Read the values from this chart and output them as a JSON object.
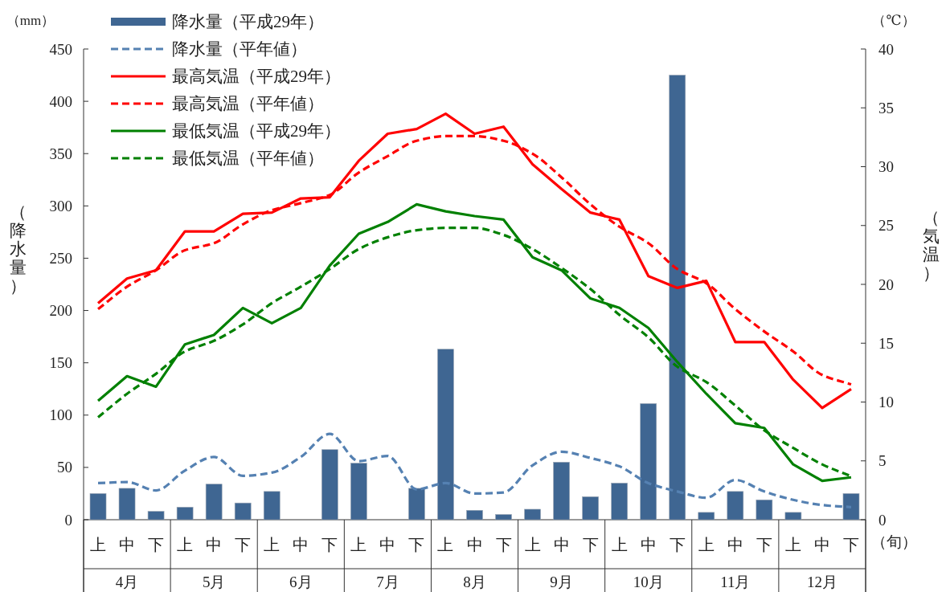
{
  "chart_data": {
    "type": "bar",
    "categories": [
      "上",
      "中",
      "下",
      "上",
      "中",
      "下",
      "上",
      "中",
      "下",
      "上",
      "中",
      "下",
      "上",
      "中",
      "下",
      "上",
      "中",
      "下",
      "上",
      "中",
      "下",
      "上",
      "中",
      "下",
      "上",
      "中",
      "下"
    ],
    "series": [
      {
        "name": "降水量（平成29年）",
        "color": "#3f6692",
        "values": [
          25,
          30,
          8,
          12,
          34,
          16,
          27,
          0,
          67,
          54,
          0,
          30,
          163,
          9,
          5,
          10,
          55,
          22,
          35,
          111,
          425,
          7,
          27,
          19,
          7,
          0,
          25
        ]
      },
      {
        "name": "降水量（平年値）",
        "type": "line",
        "line_style": "dashed",
        "color": "#5581b2",
        "values": [
          35,
          36,
          28,
          47,
          60,
          42,
          45,
          60,
          82,
          56,
          61,
          29,
          35,
          25,
          26,
          52,
          65,
          59,
          51,
          35,
          27,
          21,
          38,
          27,
          19,
          14,
          12
        ]
      },
      {
        "name": "最高気温（平成29年）",
        "type": "line",
        "axis": "y2",
        "line_style": "solid",
        "color": "#ff0000",
        "values": [
          18.4,
          20.5,
          21.2,
          24.5,
          24.5,
          26.0,
          26.1,
          27.3,
          27.4,
          30.5,
          32.8,
          33.2,
          34.5,
          32.8,
          33.4,
          30.2,
          28.1,
          26.1,
          25.5,
          20.7,
          19.7,
          20.3,
          15.1,
          15.1,
          11.9,
          9.5,
          11.1
        ]
      },
      {
        "name": "最高気温（平年値）",
        "type": "line",
        "axis": "y2",
        "line_style": "dashed",
        "color": "#ff0000",
        "values": [
          17.9,
          19.8,
          21.2,
          22.9,
          23.5,
          25.1,
          26.3,
          26.9,
          27.6,
          29.5,
          30.9,
          32.2,
          32.6,
          32.6,
          32.2,
          31.1,
          29.1,
          26.8,
          24.9,
          23.5,
          21.3,
          20.1,
          17.9,
          16.0,
          14.3,
          12.3,
          11.5
        ]
      },
      {
        "name": "最低気温（平成29年）",
        "type": "line",
        "axis": "y2",
        "line_style": "solid",
        "color": "#008000",
        "values": [
          10.1,
          12.2,
          11.3,
          14.9,
          15.7,
          18.0,
          16.7,
          18.0,
          21.6,
          24.3,
          25.3,
          26.8,
          26.2,
          25.8,
          25.5,
          22.3,
          21.2,
          18.8,
          18.0,
          16.3,
          13.4,
          10.7,
          8.2,
          7.8,
          4.7,
          3.3,
          3.6
        ]
      },
      {
        "name": "最低気温（平年値）",
        "type": "line",
        "axis": "y2",
        "line_style": "dashed",
        "color": "#008000",
        "values": [
          8.7,
          10.7,
          12.4,
          14.3,
          15.2,
          16.6,
          18.4,
          19.8,
          21.3,
          23.0,
          24.0,
          24.6,
          24.8,
          24.8,
          24.2,
          23.0,
          21.4,
          19.6,
          17.4,
          15.5,
          13.0,
          11.7,
          9.7,
          7.6,
          6.1,
          4.7,
          3.7
        ]
      }
    ],
    "ylim": [
      0,
      450
    ],
    "yticks": [
      0,
      50,
      100,
      150,
      200,
      250,
      300,
      350,
      400,
      450
    ],
    "y2lim": [
      0,
      40
    ],
    "y2ticks": [
      0,
      5,
      10,
      15,
      20,
      25,
      30,
      35,
      40
    ],
    "ylabel": "（降水量）",
    "y2label": "（気温）",
    "xlabel": "（旬）",
    "annotations": [
      "（mm）",
      "（℃）",
      "4月",
      "5月",
      "6月",
      "7月",
      "8月",
      "9月",
      "10月",
      "11月",
      "12月"
    ],
    "legend": "top left"
  }
}
